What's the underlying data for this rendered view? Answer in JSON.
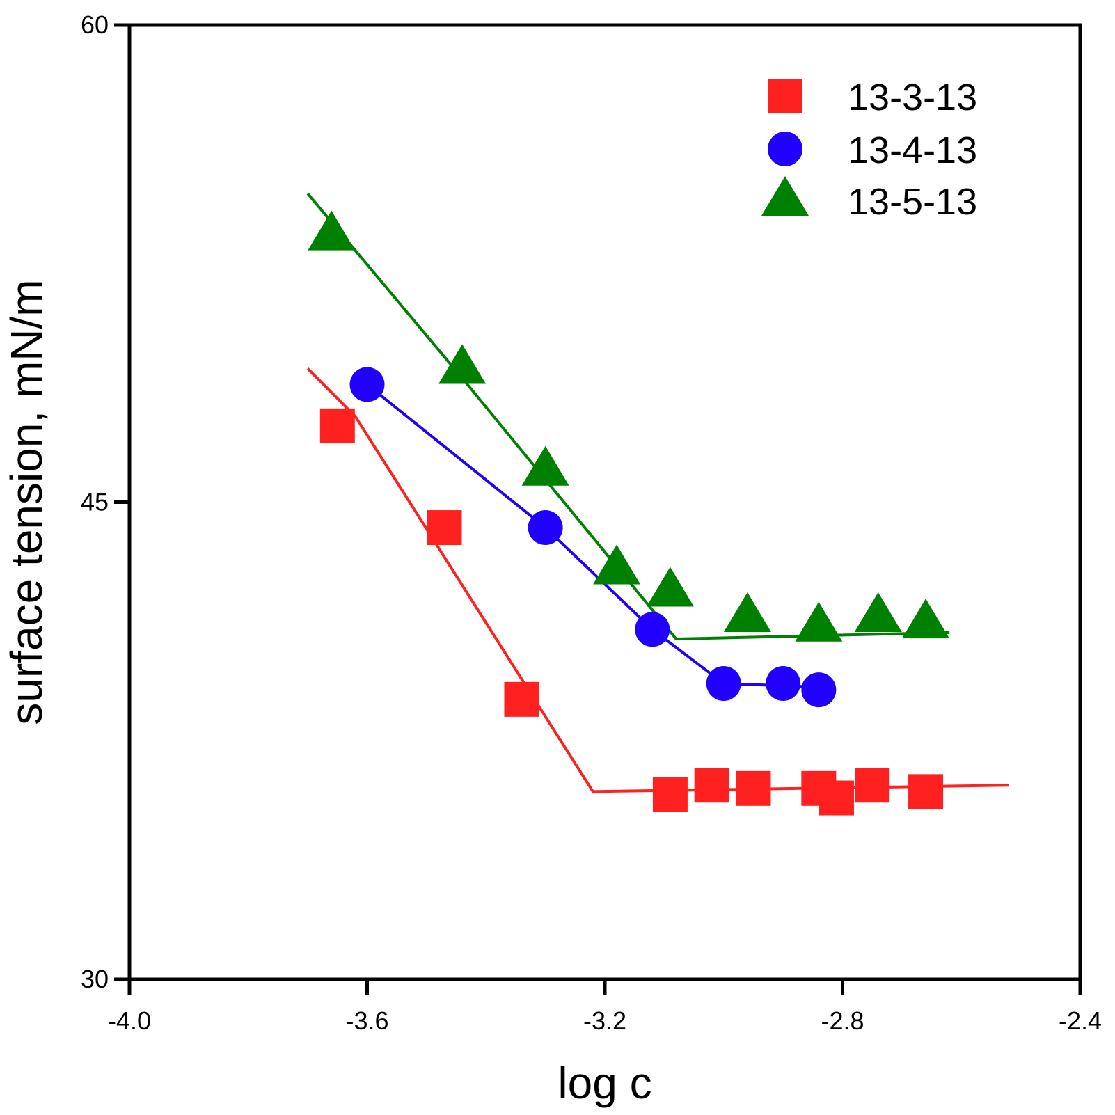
{
  "chart_data": {
    "type": "scatter",
    "xlabel": "log c",
    "ylabel": "surface tension, mN/m",
    "xlim": [
      -4.0,
      -2.4
    ],
    "ylim": [
      30,
      60
    ],
    "xticks": [
      "-4.0",
      "-3.6",
      "-3.2",
      "-2.8",
      "-2.4"
    ],
    "yticks": [
      "30",
      "45",
      "60"
    ],
    "legend_position": "top-right",
    "series": [
      {
        "name": "13-3-13",
        "marker": "square",
        "color": "#ff2020",
        "points": [
          [
            -3.65,
            47.4
          ],
          [
            -3.47,
            44.2
          ],
          [
            -3.34,
            38.8
          ],
          [
            -3.09,
            35.8
          ],
          [
            -3.02,
            36.1
          ],
          [
            -2.95,
            36.0
          ],
          [
            -2.84,
            36.0
          ],
          [
            -2.81,
            35.7
          ],
          [
            -2.75,
            36.1
          ],
          [
            -2.66,
            35.9
          ]
        ],
        "fit_line": [
          [
            -3.7,
            49.2
          ],
          [
            -3.62,
            47.7
          ],
          [
            -3.22,
            35.9
          ],
          [
            -2.52,
            36.1
          ]
        ]
      },
      {
        "name": "13-4-13",
        "marker": "circle",
        "color": "#2000ff",
        "points": [
          [
            -3.6,
            48.7
          ],
          [
            -3.3,
            44.2
          ],
          [
            -3.12,
            41.0
          ],
          [
            -3.0,
            39.3
          ],
          [
            -2.9,
            39.3
          ],
          [
            -2.84,
            39.1
          ]
        ],
        "fit_line": [
          [
            -3.6,
            48.7
          ],
          [
            -3.3,
            44.2
          ],
          [
            -3.12,
            41.0
          ],
          [
            -3.0,
            39.3
          ],
          [
            -2.86,
            39.2
          ]
        ]
      },
      {
        "name": "13-5-13",
        "marker": "triangle",
        "color": "#008000",
        "points": [
          [
            -3.66,
            53.4
          ],
          [
            -3.44,
            49.2
          ],
          [
            -3.3,
            46.0
          ],
          [
            -3.18,
            42.9
          ],
          [
            -3.09,
            42.2
          ],
          [
            -2.96,
            41.4
          ],
          [
            -2.84,
            41.1
          ],
          [
            -2.74,
            41.4
          ],
          [
            -2.66,
            41.2
          ]
        ],
        "fit_line": [
          [
            -3.7,
            54.7
          ],
          [
            -3.44,
            48.9
          ],
          [
            -3.08,
            40.7
          ],
          [
            -2.62,
            40.9
          ]
        ]
      }
    ]
  }
}
